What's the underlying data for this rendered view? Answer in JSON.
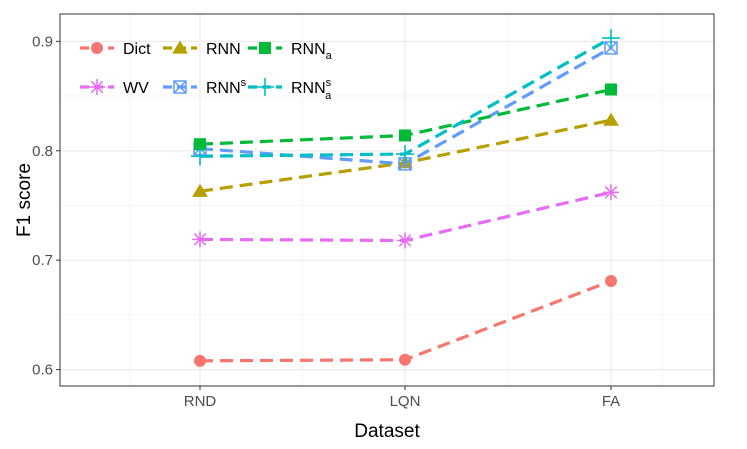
{
  "chart_data": {
    "type": "line",
    "title": "",
    "xlabel": "Dataset",
    "ylabel": "F1 score",
    "categories": [
      "RND",
      "LQN",
      "FA"
    ],
    "ylim": [
      0.585,
      0.925
    ],
    "yticks": [
      0.6,
      0.7,
      0.8,
      0.9
    ],
    "ytick_labels": [
      "0.6",
      "0.7",
      "0.8",
      "0.9"
    ],
    "grid": true,
    "legend_position": "top-left",
    "series": [
      {
        "name": "Dict",
        "label": "Dict",
        "sup": "",
        "sub": "",
        "color": "#f8766d",
        "marker": "circle",
        "values": [
          0.608,
          0.609,
          0.681
        ]
      },
      {
        "name": "WV",
        "label": "WV",
        "sup": "",
        "sub": "",
        "color": "#e76bf3",
        "marker": "asterisk",
        "values": [
          0.719,
          0.718,
          0.762
        ]
      },
      {
        "name": "RNN",
        "label": "RNN",
        "sup": "",
        "sub": "",
        "color": "#b79f00",
        "marker": "triangle",
        "values": [
          0.763,
          0.789,
          0.828
        ]
      },
      {
        "name": "RNN^s",
        "label": "RNN",
        "sup": "s",
        "sub": "",
        "color": "#619cff",
        "marker": "square-cross",
        "values": [
          0.802,
          0.788,
          0.894
        ]
      },
      {
        "name": "RNN_a",
        "label": "RNN",
        "sup": "",
        "sub": "a",
        "color": "#00ba38",
        "marker": "square",
        "values": [
          0.806,
          0.814,
          0.856
        ]
      },
      {
        "name": "RNN_a^s",
        "label": "RNN",
        "sup": "s",
        "sub": "a",
        "color": "#00bfc4",
        "marker": "plus",
        "values": [
          0.795,
          0.797,
          0.903
        ]
      }
    ]
  }
}
